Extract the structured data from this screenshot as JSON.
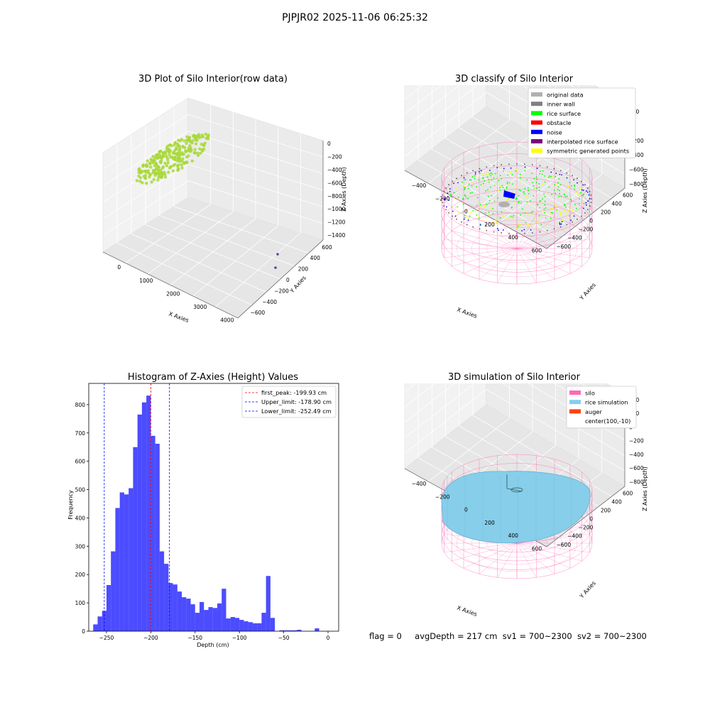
{
  "suptitle": "PJPJR02 2025-11-06 06:25:32",
  "footer": {
    "flag": "flag = 0",
    "avg_depth": "avgDepth = 217 cm",
    "sv1": "sv1 = 700~2300",
    "sv2": "sv2 = 700~2300"
  },
  "chart_data": [
    {
      "type": "scatter3d",
      "title": "3D Plot of Silo Interior(row data)",
      "xlabel": "X Axies",
      "ylabel": "Y Axies",
      "zlabel": "Z Axies (Depth)",
      "x_ticks": [
        "0",
        "1000",
        "2000",
        "3000",
        "4000"
      ],
      "y_ticks": [
        "600",
        "400",
        "200",
        "0",
        "−200",
        "−400",
        "−600"
      ],
      "z_ticks": [
        "0",
        "−200",
        "−400",
        "−600",
        "−800",
        "−1000",
        "−1200",
        "−1400"
      ],
      "xlim": [
        -500,
        4500
      ],
      "ylim": [
        -700,
        700
      ],
      "zlim": [
        -1450,
        50
      ],
      "colors": {
        "cloud": "#a8d83a",
        "outlier": "#6a3d9a"
      }
    },
    {
      "type": "scatter3d",
      "title": "3D classify of Silo Interior",
      "xlabel": "X Axies",
      "ylabel": "Y Axies",
      "zlabel": "Z Axies (Depth)",
      "x_ticks": [
        "−400",
        "−200",
        "0",
        "200",
        "400",
        "600"
      ],
      "y_ticks": [
        "600",
        "400",
        "200",
        "0",
        "−200",
        "−400",
        "−600"
      ],
      "z_ticks": [
        "200",
        "0",
        "−200",
        "−400",
        "−600",
        "−800"
      ],
      "legend": [
        {
          "label": "original data",
          "color": "#b0b0b0"
        },
        {
          "label": "inner wall",
          "color": "#808080"
        },
        {
          "label": "rice surface",
          "color": "#00ff00"
        },
        {
          "label": "obstacle",
          "color": "#ff0000"
        },
        {
          "label": "noise",
          "color": "#0000ff"
        },
        {
          "label": "interpolated rice surface",
          "color": "#800080"
        },
        {
          "label": "symmetric generated points",
          "color": "#ffff00"
        }
      ],
      "legend_loc": "upper right",
      "wire_color": "#ff69b4"
    },
    {
      "type": "bar",
      "title": "Histogram of Z-Axies (Height) Values",
      "xlabel": "Depth (cm)",
      "ylabel": "Frequency",
      "xlim": [
        -270,
        12
      ],
      "ylim": [
        0,
        875
      ],
      "x_ticks": [
        -250,
        -200,
        -150,
        -100,
        -50,
        0
      ],
      "y_ticks": [
        0,
        100,
        200,
        300,
        400,
        500,
        600,
        700,
        800
      ],
      "bin_start": -265,
      "bin_width": 5,
      "values": [
        24,
        52,
        72,
        163,
        282,
        435,
        490,
        483,
        505,
        650,
        765,
        808,
        832,
        690,
        662,
        282,
        238,
        170,
        165,
        140,
        120,
        115,
        95,
        65,
        103,
        75,
        85,
        82,
        98,
        150,
        45,
        50,
        47,
        40,
        35,
        32,
        28,
        28,
        65,
        195,
        47,
        0,
        3,
        3,
        3,
        3,
        5,
        0,
        0,
        0,
        10
      ],
      "bar_color": "#0000ff",
      "lines": [
        {
          "name": "first_peak: -199.93 cm",
          "x": -199.93,
          "color": "#ff0000"
        },
        {
          "name": "Upper_limit: -178.90 cm",
          "x": -178.9,
          "color": "#0000ff"
        },
        {
          "name": "Lower_limit: -252.49 cm",
          "x": -252.49,
          "color": "#0000ff"
        }
      ],
      "legend_loc": "upper right"
    },
    {
      "type": "surface3d",
      "title": "3D simulation of Silo Interior",
      "xlabel": "X Axies",
      "ylabel": "Y Axies",
      "zlabel": "Z Axies (Depth)",
      "x_ticks": [
        "−400",
        "−200",
        "0",
        "200",
        "400",
        "600"
      ],
      "y_ticks": [
        "600",
        "400",
        "200",
        "0",
        "−200",
        "−400",
        "−600"
      ],
      "z_ticks": [
        "400",
        "200",
        "0",
        "−200",
        "−400",
        "−600",
        "−800"
      ],
      "legend": [
        {
          "label": "silo",
          "color": "#ff69b4"
        },
        {
          "label": "rice simulation",
          "color": "#87ceeb"
        },
        {
          "label": "auger",
          "color": "#ff4500"
        },
        {
          "label": "center(100,-10)",
          "color": "none"
        }
      ],
      "legend_loc": "upper right"
    }
  ]
}
